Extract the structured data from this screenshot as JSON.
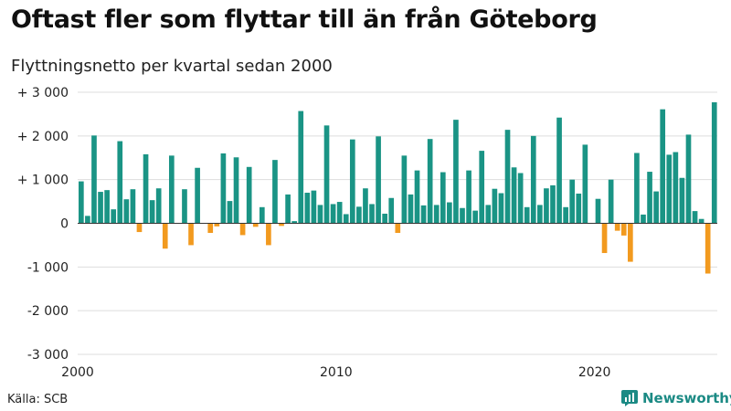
{
  "title": "Oftast fler som flyttar till än från Göteborg",
  "subtitle": "Flyttningsnetto per kvartal sedan 2000",
  "source": "Källa: SCB",
  "brand": "Newsworthy",
  "colors": {
    "positive": "#1a9485",
    "negative": "#f29a1f",
    "grid": "#dddddd",
    "baseline": "#333333",
    "brand": "#1b8a84"
  },
  "chart_data": {
    "type": "bar",
    "title": "Oftast fler som flyttar till än från Göteborg",
    "subtitle": "Flyttningsnetto per kvartal sedan 2000",
    "xlabel": "",
    "ylabel": "",
    "ylim": [
      -3000,
      3000
    ],
    "yticks": [
      {
        "value": 3000,
        "label": "+ 3 000"
      },
      {
        "value": 2000,
        "label": "+ 2 000"
      },
      {
        "value": 1000,
        "label": "+ 1 000"
      },
      {
        "value": 0,
        "label": "0"
      },
      {
        "value": -1000,
        "label": "-1 000"
      },
      {
        "value": -2000,
        "label": "-2 000"
      },
      {
        "value": -3000,
        "label": "-3 000"
      }
    ],
    "xticks": [
      {
        "value": 2000,
        "label": "2000"
      },
      {
        "value": 2010,
        "label": "2010"
      },
      {
        "value": 2020,
        "label": "2020"
      }
    ],
    "x_start": 2000,
    "period": "quarter",
    "grid": true,
    "values": [
      960,
      170,
      2010,
      720,
      760,
      320,
      1880,
      550,
      780,
      -200,
      1580,
      530,
      800,
      -580,
      1550,
      0,
      780,
      -500,
      1270,
      0,
      -220,
      -70,
      1600,
      510,
      1510,
      -270,
      1290,
      -80,
      370,
      -500,
      1450,
      -60,
      660,
      50,
      2570,
      700,
      750,
      420,
      2240,
      440,
      490,
      210,
      1920,
      380,
      800,
      440,
      1990,
      220,
      580,
      -220,
      1550,
      660,
      1210,
      410,
      1930,
      420,
      1170,
      480,
      2370,
      350,
      1210,
      290,
      1660,
      420,
      790,
      690,
      2140,
      1280,
      1150,
      370,
      2000,
      420,
      800,
      870,
      2420,
      370,
      1000,
      680,
      1800,
      0,
      560,
      -680,
      1000,
      -170,
      -280,
      -880,
      1610,
      200,
      1180,
      730,
      2610,
      1570,
      1630,
      1040,
      2030,
      280,
      100,
      -1150,
      2770
    ]
  }
}
